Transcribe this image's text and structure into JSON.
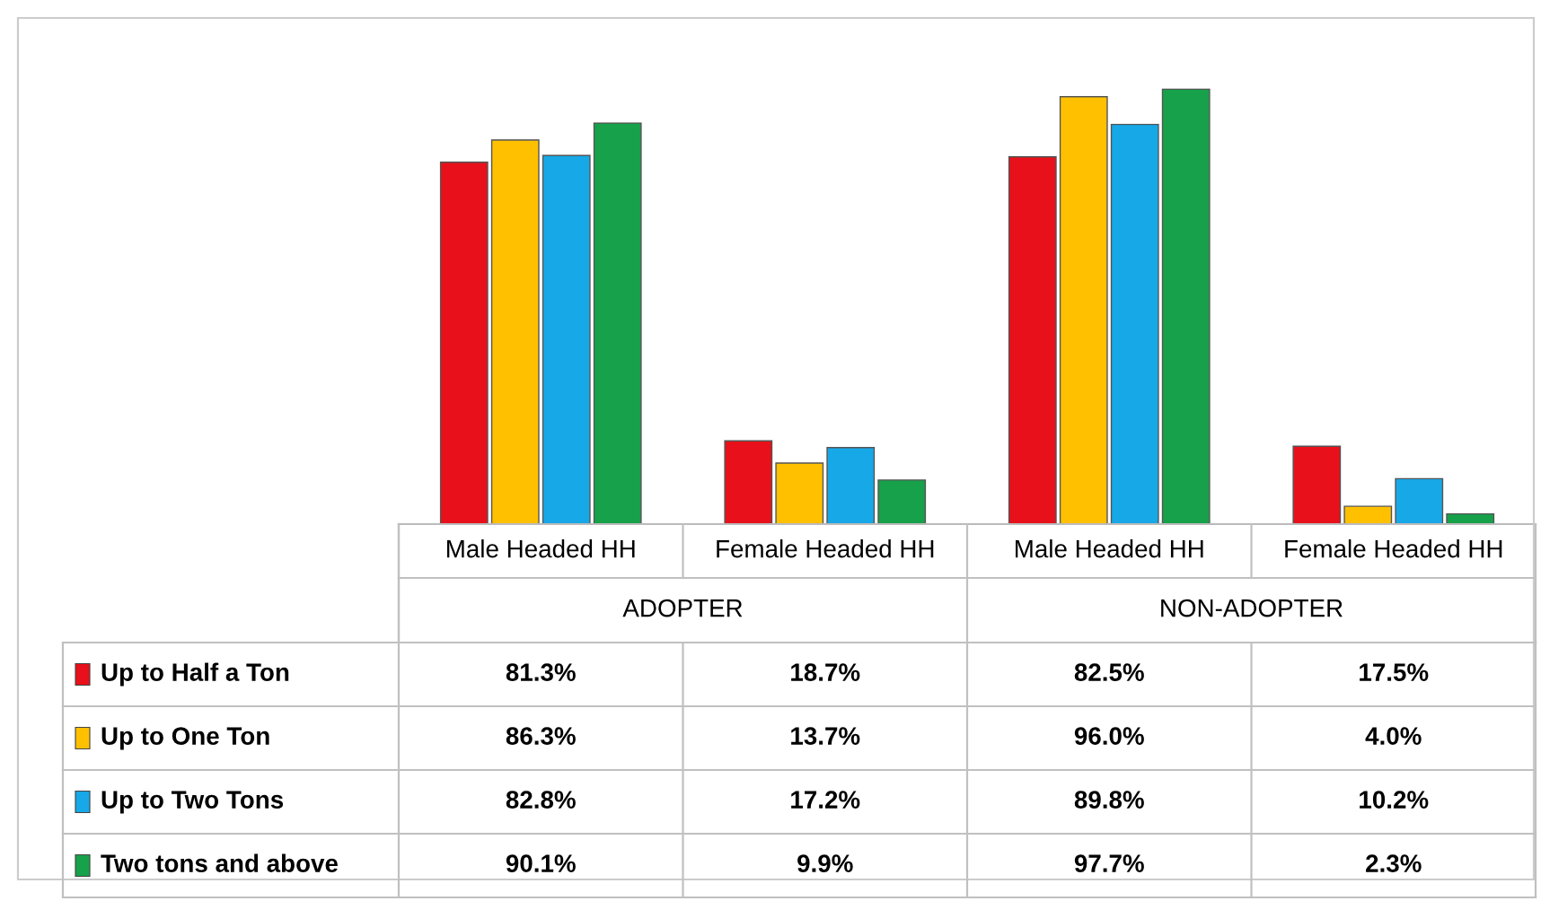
{
  "chart_data": {
    "type": "bar",
    "categories": [
      "Male Headed HH",
      "Female Headed HH",
      "Male Headed HH",
      "Female Headed HH"
    ],
    "annotations": [
      "ADOPTER",
      "NON-ADOPTER"
    ],
    "series": [
      {
        "name": "Up to Half a Ton",
        "color": "#e8101a",
        "values": [
          81.3,
          18.7,
          82.5,
          17.5
        ],
        "value_labels": [
          "81.3%",
          "18.7%",
          "82.5%",
          "17.5%"
        ]
      },
      {
        "name": "Up to One Ton",
        "color": "#ffc000",
        "values": [
          86.3,
          13.7,
          96.0,
          4.0
        ],
        "value_labels": [
          "86.3%",
          "13.7%",
          "96.0%",
          "4.0%"
        ]
      },
      {
        "name": "Up to Two Tons",
        "color": "#17a8e8",
        "values": [
          82.8,
          17.2,
          89.8,
          10.2
        ],
        "value_labels": [
          "82.8%",
          "17.2%",
          "89.8%",
          "10.2%"
        ]
      },
      {
        "name": "Two tons and above",
        "color": "#17a14a",
        "values": [
          90.1,
          9.9,
          97.7,
          2.3
        ],
        "value_labels": [
          "90.1%",
          "9.9%",
          "97.7%",
          "2.3%"
        ]
      }
    ],
    "legend": "bottom left"
  }
}
